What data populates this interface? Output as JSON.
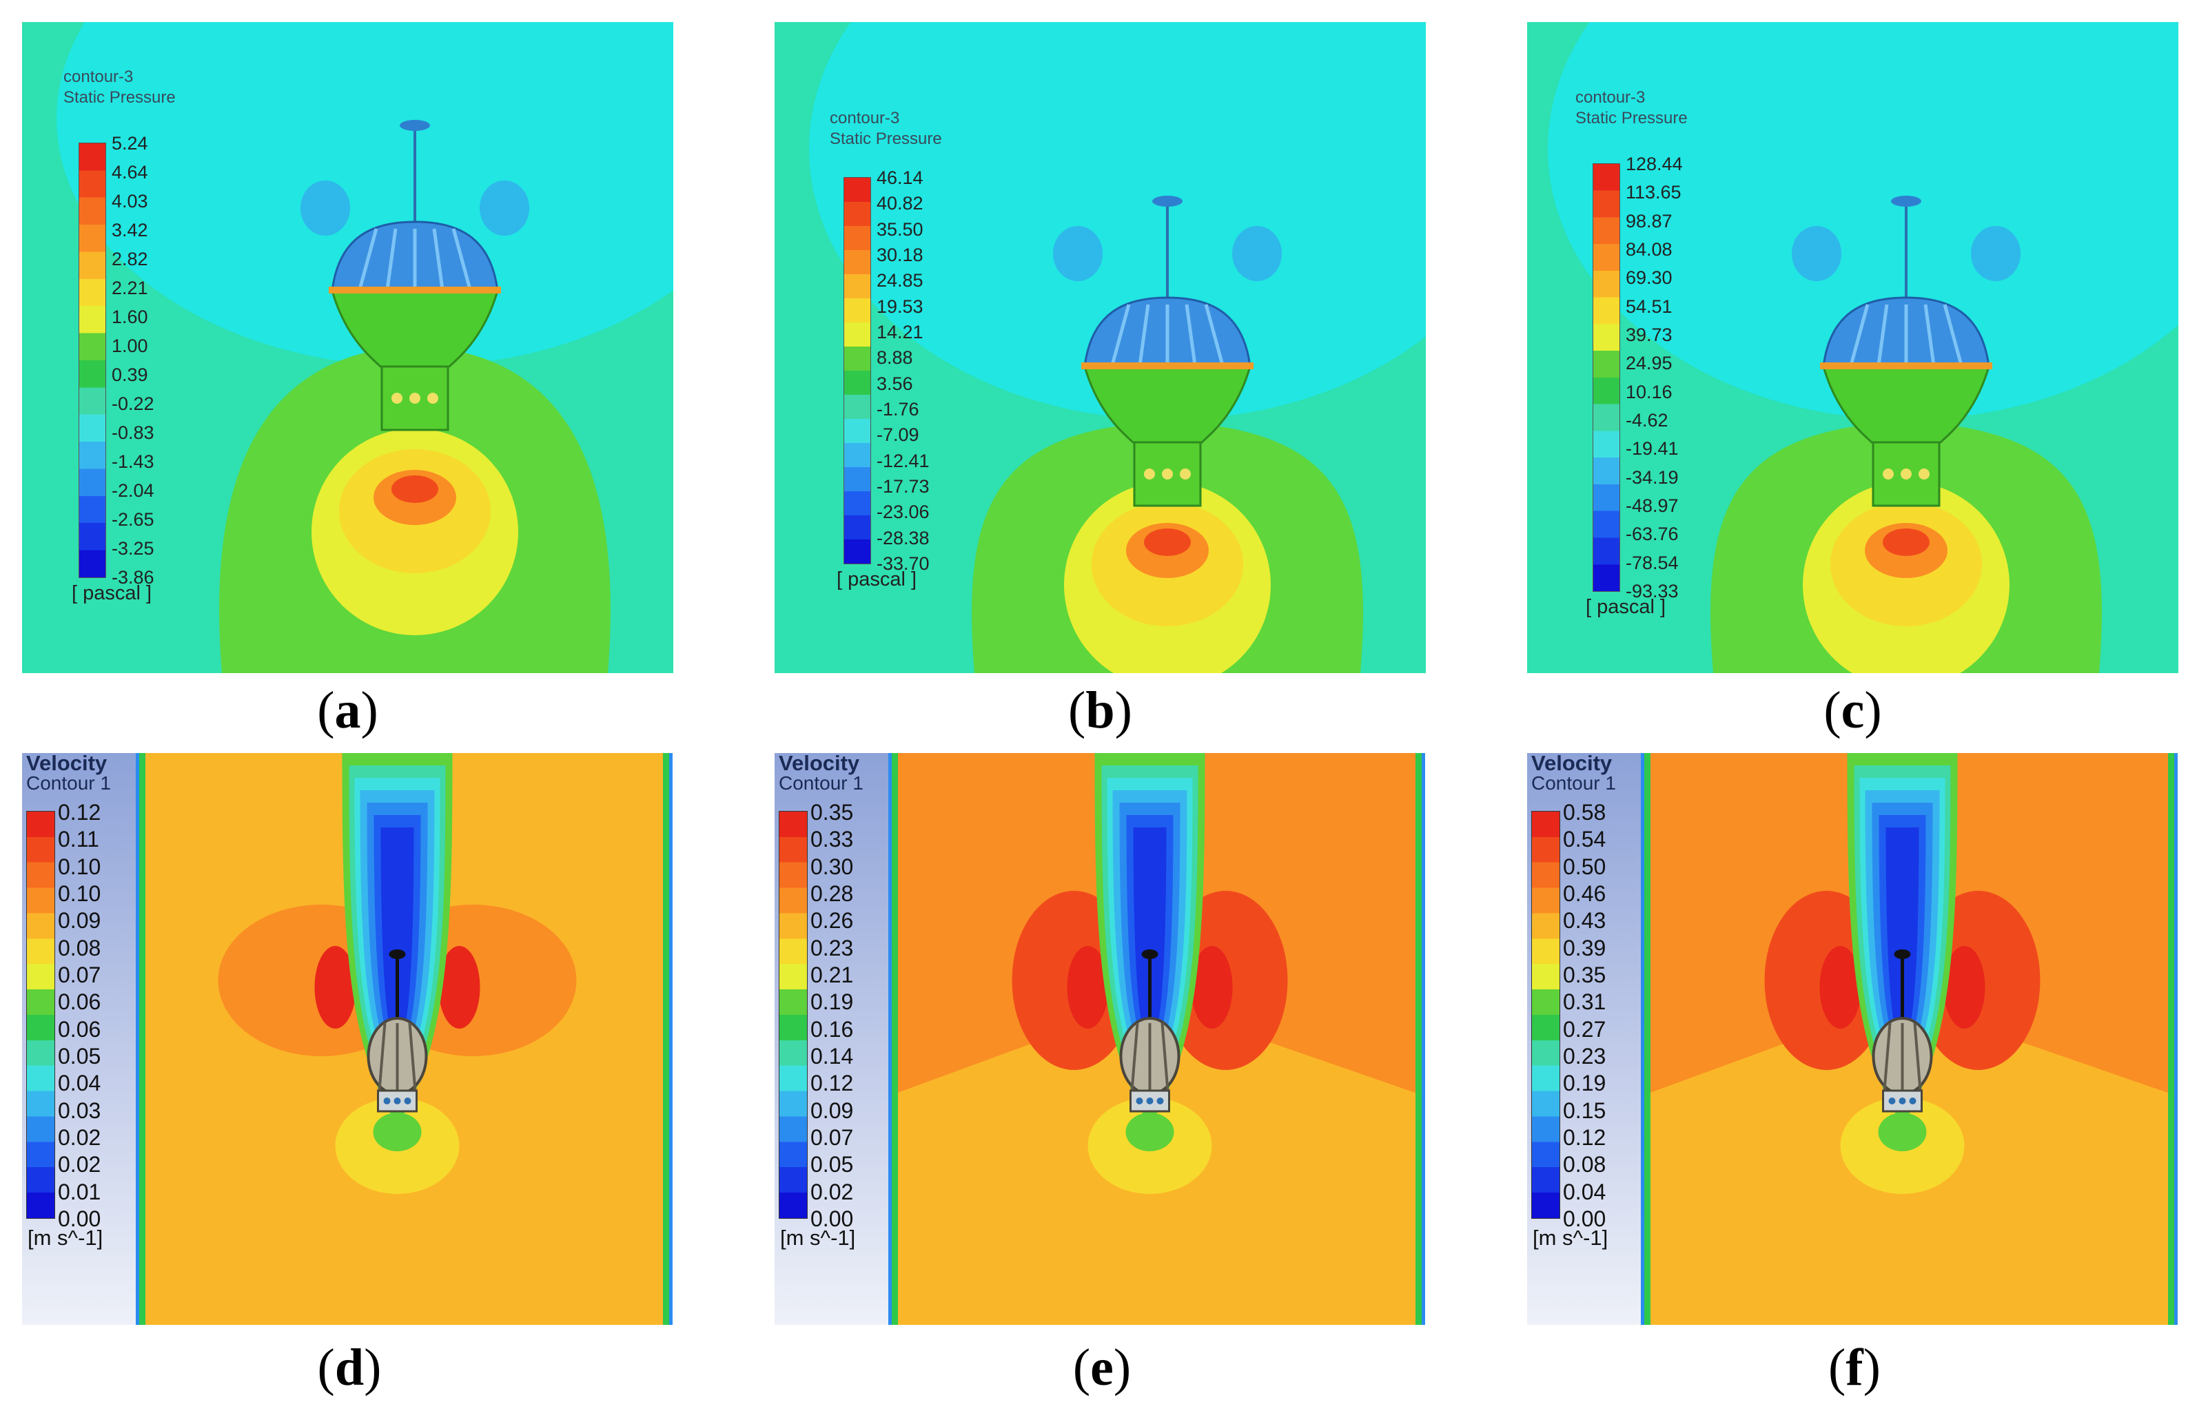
{
  "pressure_panels": [
    {
      "title1": "contour-3",
      "title2": "Static Pressure",
      "ticks": [
        "5.24",
        "4.64",
        "4.03",
        "3.42",
        "2.82",
        "2.21",
        "1.60",
        "1.00",
        "0.39",
        "-0.22",
        "-0.83",
        "-1.43",
        "-2.04",
        "-2.65",
        "-3.25",
        "-3.86"
      ],
      "unit": "[ pascal ]",
      "caption": "a"
    },
    {
      "title1": "contour-3",
      "title2": "Static Pressure",
      "ticks": [
        "46.14",
        "40.82",
        "35.50",
        "30.18",
        "24.85",
        "19.53",
        "14.21",
        "8.88",
        "3.56",
        "-1.76",
        "-7.09",
        "-12.41",
        "-17.73",
        "-23.06",
        "-28.38",
        "-33.70"
      ],
      "unit": "[ pascal ]",
      "caption": "b"
    },
    {
      "title1": "contour-3",
      "title2": "Static Pressure",
      "ticks": [
        "128.44",
        "113.65",
        "98.87",
        "84.08",
        "69.30",
        "54.51",
        "39.73",
        "24.95",
        "10.16",
        "-4.62",
        "-19.41",
        "-34.19",
        "-48.97",
        "-63.76",
        "-78.54",
        "-93.33"
      ],
      "unit": "[ pascal ]",
      "caption": "c"
    }
  ],
  "velocity_panels": [
    {
      "title1": "Velocity",
      "title2": "Contour 1",
      "ticks": [
        "0.12",
        "0.11",
        "0.10",
        "0.10",
        "0.09",
        "0.08",
        "0.07",
        "0.06",
        "0.06",
        "0.05",
        "0.04",
        "0.03",
        "0.02",
        "0.02",
        "0.01",
        "0.00"
      ],
      "unit": "[m s^-1]",
      "caption": "d"
    },
    {
      "title1": "Velocity",
      "title2": "Contour 1",
      "ticks": [
        "0.35",
        "0.33",
        "0.30",
        "0.28",
        "0.26",
        "0.23",
        "0.21",
        "0.19",
        "0.16",
        "0.14",
        "0.12",
        "0.09",
        "0.07",
        "0.05",
        "0.02",
        "0.00"
      ],
      "unit": "[m s^-1]",
      "caption": "e"
    },
    {
      "title1": "Velocity",
      "title2": "Contour 1",
      "ticks": [
        "0.58",
        "0.54",
        "0.50",
        "0.46",
        "0.43",
        "0.39",
        "0.35",
        "0.31",
        "0.27",
        "0.23",
        "0.19",
        "0.15",
        "0.12",
        "0.08",
        "0.04",
        "0.00"
      ],
      "unit": "[m s^-1]",
      "caption": "f"
    }
  ],
  "colormap": [
    "#e8261a",
    "#f04a1c",
    "#f66e20",
    "#f98e24",
    "#fab629",
    "#f7da2e",
    "#e6ef33",
    "#5fd13a",
    "#2fc84b",
    "#3fd8a6",
    "#3ee0df",
    "#38b7ee",
    "#2b8cf0",
    "#1f5df0",
    "#1736e6",
    "#0f10d8"
  ]
}
